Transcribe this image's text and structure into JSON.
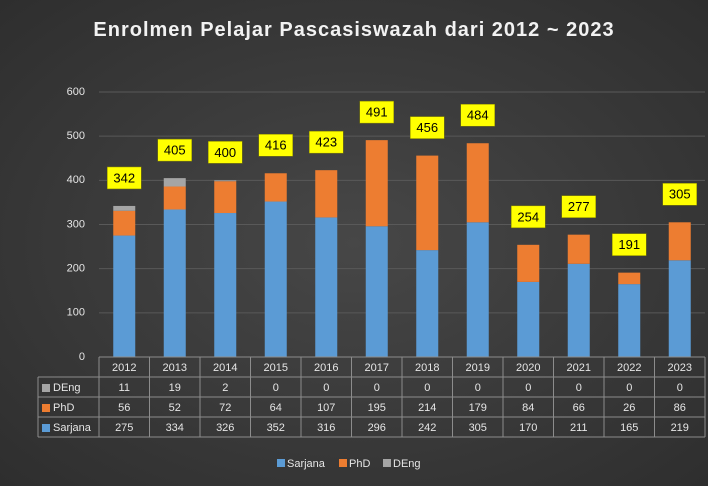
{
  "chart_data": {
    "type": "stacked_bar",
    "title": "Enrolmen Pelajar Pascasiswazah dari 2012 ~ 2023",
    "categories": [
      "2012",
      "2013",
      "2014",
      "2015",
      "2016",
      "2017",
      "2018",
      "2019",
      "2020",
      "2021",
      "2022",
      "2023"
    ],
    "series": [
      {
        "name": "Sarjana",
        "color": "#5b9bd5",
        "values": [
          275,
          334,
          326,
          352,
          316,
          296,
          242,
          305,
          170,
          211,
          165,
          219
        ]
      },
      {
        "name": "PhD",
        "color": "#ed7d31",
        "values": [
          56,
          52,
          72,
          64,
          107,
          195,
          214,
          179,
          84,
          66,
          26,
          86
        ]
      },
      {
        "name": "DEng",
        "color": "#a5a5a5",
        "values": [
          11,
          19,
          2,
          0,
          0,
          0,
          0,
          0,
          0,
          0,
          0,
          0
        ]
      }
    ],
    "totals": [
      342,
      405,
      400,
      416,
      423,
      491,
      456,
      484,
      254,
      277,
      191,
      305
    ],
    "ylim": [
      0,
      600
    ],
    "yticks": [
      0,
      100,
      200,
      300,
      400,
      500,
      600
    ],
    "grid": true,
    "legend": "bottom"
  }
}
